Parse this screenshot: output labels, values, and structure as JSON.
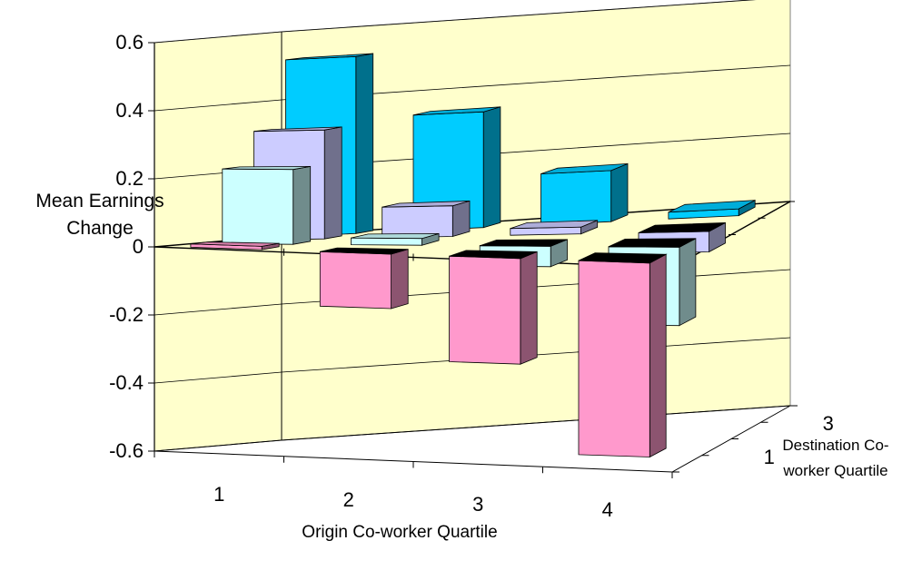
{
  "chart_data": {
    "type": "bar",
    "subtype": "3d-column",
    "ylabel": "Mean Earnings Change",
    "xlabel": "Origin Co-worker Quartile",
    "zlabel": "Destination Co-worker Quartile",
    "x_categories": [
      "1",
      "2",
      "3",
      "4"
    ],
    "z_tick_labels": [
      "1",
      "3"
    ],
    "y_ticks": [
      "0.6",
      "0.4",
      "0.2",
      "0",
      "-0.2",
      "-0.4",
      "-0.6"
    ],
    "ylim": [
      -0.6,
      0.6
    ],
    "grid": true,
    "legend": "none",
    "colors": {
      "walls": "#ffffcc",
      "row_1": "#ff99cc",
      "row_2": "#ccffff",
      "row_3": "#ccccff",
      "row_4": "#00ccff"
    },
    "bars": [
      {
        "origin": 1,
        "destination_row": 1,
        "value": 0.01
      },
      {
        "origin": 2,
        "destination_row": 1,
        "value": -0.16
      },
      {
        "origin": 3,
        "destination_row": 1,
        "value": -0.31
      },
      {
        "origin": 4,
        "destination_row": 1,
        "value": -0.57
      },
      {
        "origin": 1,
        "destination_row": 2,
        "value": 0.22
      },
      {
        "origin": 2,
        "destination_row": 2,
        "value": 0.02
      },
      {
        "origin": 3,
        "destination_row": 2,
        "value": -0.06
      },
      {
        "origin": 4,
        "destination_row": 2,
        "value": -0.23
      },
      {
        "origin": 1,
        "destination_row": 3,
        "value": 0.32
      },
      {
        "origin": 2,
        "destination_row": 3,
        "value": 0.09
      },
      {
        "origin": 3,
        "destination_row": 3,
        "value": 0.02
      },
      {
        "origin": 4,
        "destination_row": 3,
        "value": -0.06
      },
      {
        "origin": 1,
        "destination_row": 4,
        "value": 0.52
      },
      {
        "origin": 2,
        "destination_row": 4,
        "value": 0.34
      },
      {
        "origin": 3,
        "destination_row": 4,
        "value": 0.15
      },
      {
        "origin": 4,
        "destination_row": 4,
        "value": 0.02
      }
    ]
  }
}
